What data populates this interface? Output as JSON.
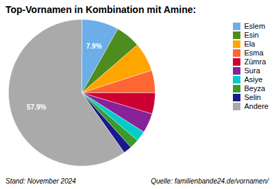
{
  "chart_data": {
    "type": "pie",
    "title": "Top-Vornamen in Kombination mit Amine:",
    "categories": [
      "Eslem",
      "Esin",
      "Ela",
      "Esma",
      "Zümra",
      "Sura",
      "Asiye",
      "Beyza",
      "Selin",
      "Andere"
    ],
    "values": [
      7.9,
      5.3,
      6.2,
      4.8,
      4.5,
      4.2,
      2.2,
      2.0,
      1.8,
      57.9
    ],
    "colors": [
      "#6BAEE8",
      "#4D8C1E",
      "#FFA500",
      "#FF6633",
      "#CC0033",
      "#882299",
      "#00CCCC",
      "#3A9A2A",
      "#1A1A8C",
      "#AAAAAA"
    ],
    "value_labels": [
      "7.9%",
      null,
      null,
      null,
      null,
      null,
      null,
      null,
      null,
      "57.9%"
    ],
    "data_labels": true,
    "legend": "upper right",
    "annotations": [
      "Stand: November 2024",
      "Quelle: familienbande24.de/vornamen/"
    ]
  }
}
